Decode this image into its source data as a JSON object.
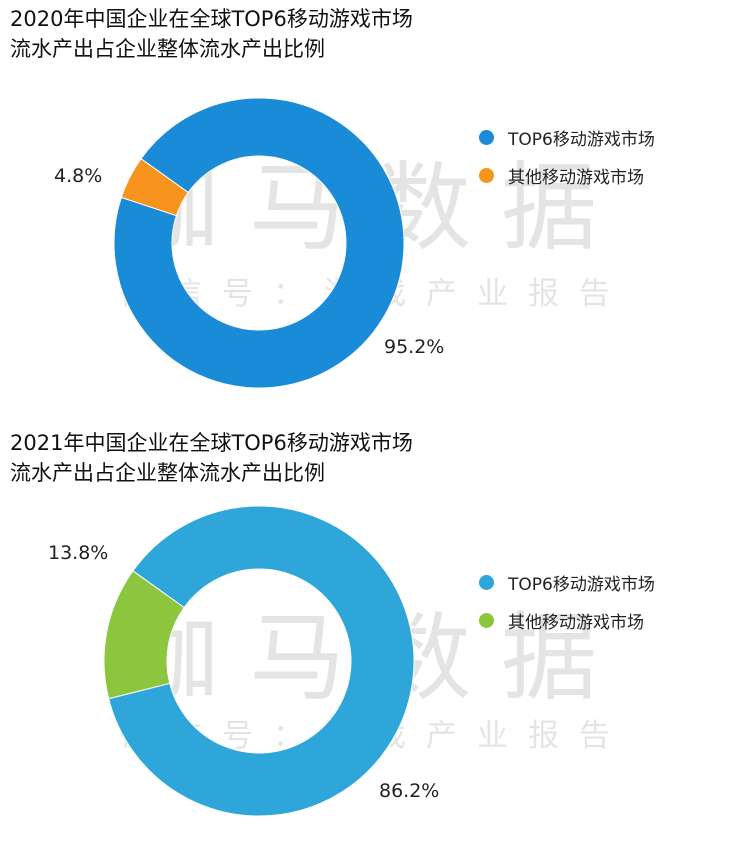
{
  "watermark": {
    "main": "伽马数据",
    "sub": "微信号：游戏产业报告"
  },
  "charts": [
    {
      "title_line1": "2020年中国企业在全球TOP6移动游戏市场",
      "title_line2": "流水产出占企业整体流水产出比例",
      "legend": [
        "TOP6移动游戏市场",
        "其他移动游戏市场"
      ]
    },
    {
      "title_line1": "2021年中国企业在全球TOP6移动游戏市场",
      "title_line2": "流水产出占企业整体流水产出比例",
      "legend": [
        "TOP6移动游戏市场",
        "其他移动游戏市场"
      ]
    }
  ],
  "chart_data": [
    {
      "type": "pie",
      "title": "2020年中国企业在全球TOP6移动游戏市场 流水产出占企业整体流水产出比例",
      "categories": [
        "TOP6移动游戏市场",
        "其他移动游戏市场"
      ],
      "values": [
        95.2,
        4.8
      ],
      "data_labels": [
        "95.2%",
        "4.8%"
      ],
      "colors": [
        "#1a8bd6",
        "#f7941d"
      ],
      "legend_position": "right"
    },
    {
      "type": "pie",
      "title": "2021年中国企业在全球TOP6移动游戏市场 流水产出占企业整体流水产出比例",
      "categories": [
        "TOP6移动游戏市场",
        "其他移动游戏市场"
      ],
      "values": [
        86.2,
        13.8
      ],
      "data_labels": [
        "86.2%",
        "13.8%"
      ],
      "colors": [
        "#2fa6d9",
        "#8cc63f"
      ],
      "legend_position": "right"
    }
  ]
}
